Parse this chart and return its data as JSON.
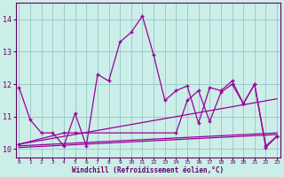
{
  "xlabel": "Windchill (Refroidissement éolien,°C)",
  "background_color": "#cceee8",
  "grid_color": "#99cccc",
  "line_color": "#990099",
  "x_values": [
    0,
    1,
    2,
    3,
    4,
    5,
    6,
    7,
    8,
    9,
    10,
    11,
    12,
    13,
    14,
    15,
    16,
    17,
    18,
    19,
    20,
    21,
    22,
    23
  ],
  "y_series1": [
    11.9,
    10.9,
    10.5,
    10.5,
    10.1,
    11.1,
    10.1,
    12.3,
    12.1,
    13.3,
    13.6,
    14.1,
    12.9,
    11.5,
    11.8,
    11.95,
    10.8,
    11.9,
    11.8,
    12.1,
    11.4,
    12.0,
    10.1,
    10.4
  ],
  "y_series2_x": [
    0,
    4,
    5,
    14,
    15,
    16,
    17,
    18,
    19,
    20,
    21,
    22,
    23
  ],
  "y_series2": [
    10.15,
    10.5,
    10.5,
    10.5,
    11.5,
    11.8,
    10.85,
    11.75,
    12.0,
    11.4,
    12.0,
    10.05,
    10.4
  ],
  "y_line1_x": [
    0,
    23
  ],
  "y_line1_y": [
    10.05,
    10.45
  ],
  "y_line2_x": [
    0,
    23
  ],
  "y_line2_y": [
    10.1,
    10.5
  ],
  "y_line3_x": [
    0,
    23
  ],
  "y_line3_y": [
    10.15,
    11.55
  ],
  "ylim": [
    9.75,
    14.5
  ],
  "yticks": [
    10,
    11,
    12,
    13,
    14
  ],
  "xlim": [
    -0.3,
    23.3
  ],
  "xticks": [
    0,
    1,
    2,
    3,
    4,
    5,
    6,
    7,
    8,
    9,
    10,
    11,
    12,
    13,
    14,
    15,
    16,
    17,
    18,
    19,
    20,
    21,
    22,
    23
  ]
}
